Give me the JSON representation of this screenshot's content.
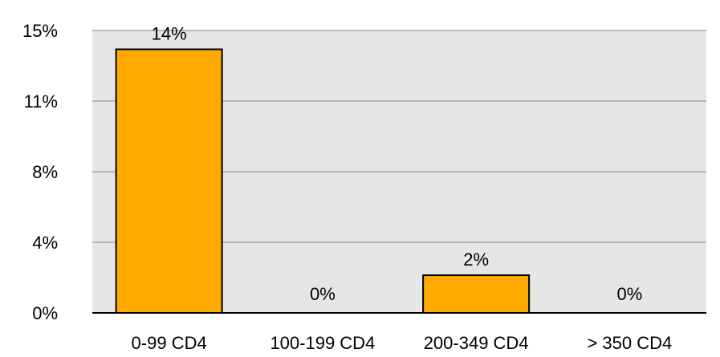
{
  "chart_data": {
    "type": "bar",
    "categories": [
      "0-99 CD4",
      "100-199 CD4",
      "200-349 CD4",
      "> 350 CD4"
    ],
    "values": [
      14,
      0,
      2,
      0
    ],
    "data_labels": [
      "14%",
      "0%",
      "2%",
      "0%"
    ],
    "title": "",
    "xlabel": "",
    "ylabel": "",
    "ylim": [
      0,
      15
    ],
    "y_ticks": [
      0,
      3.75,
      7.5,
      11.25,
      15
    ],
    "y_tick_labels": [
      "0%",
      "4%",
      "8%",
      "11%",
      "15%"
    ],
    "grid": true,
    "colors": {
      "plot_background": "#e6e6e6",
      "bar_fill": "#ffaa00",
      "bar_stroke": "#000000",
      "gridline": "#a6a6a6",
      "axis": "#000000"
    }
  }
}
